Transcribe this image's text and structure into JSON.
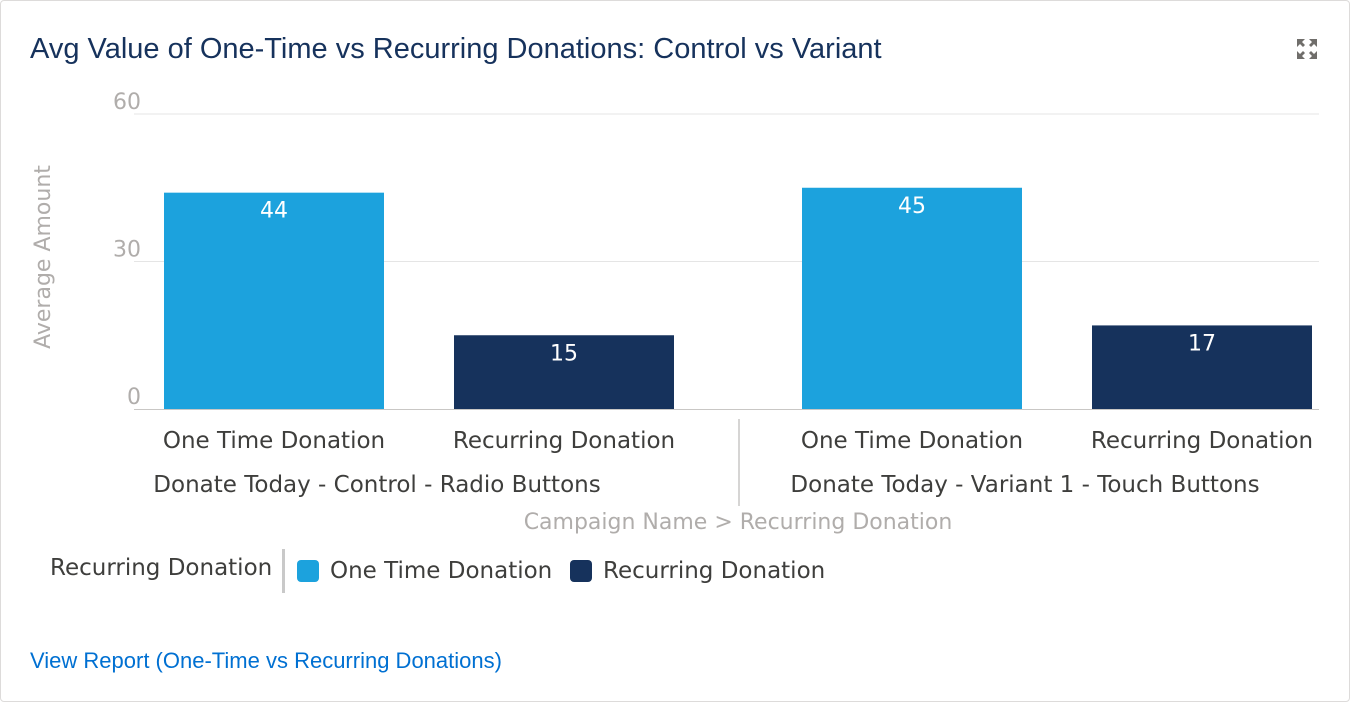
{
  "header": {
    "title": "Avg Value of One-Time vs Recurring Donations: Control vs Variant",
    "expand_icon": "expand-icon"
  },
  "chart_data": {
    "type": "bar",
    "title": "Avg Value of One-Time vs Recurring Donations: Control vs Variant",
    "ylabel": "Average Amount",
    "xlabel": "Campaign Name > Recurring Donation",
    "ylim": [
      0,
      60
    ],
    "yticks": [
      0,
      30,
      60
    ],
    "grid": true,
    "groups": [
      {
        "name": "Donate Today - Control - Radio Buttons",
        "bars": [
          {
            "category": "One Time Donation",
            "value": 44,
            "label": "44"
          },
          {
            "category": "Recurring Donation",
            "value": 15,
            "label": "15"
          }
        ]
      },
      {
        "name": "Donate Today - Variant 1 - Touch Buttons",
        "bars": [
          {
            "category": "One Time Donation",
            "value": 45,
            "label": "45"
          },
          {
            "category": "Recurring Donation",
            "value": 17,
            "label": "17"
          }
        ]
      }
    ],
    "colors": {
      "One Time Donation": "#1ca2dd",
      "Recurring Donation": "#16325c"
    }
  },
  "legend": {
    "title": "Recurring Donation",
    "items": [
      {
        "label": "One Time Donation",
        "color": "#1ca2dd"
      },
      {
        "label": "Recurring Donation",
        "color": "#16325c"
      }
    ]
  },
  "footer": {
    "link_label": "View Report (One-Time vs Recurring Donations)"
  }
}
